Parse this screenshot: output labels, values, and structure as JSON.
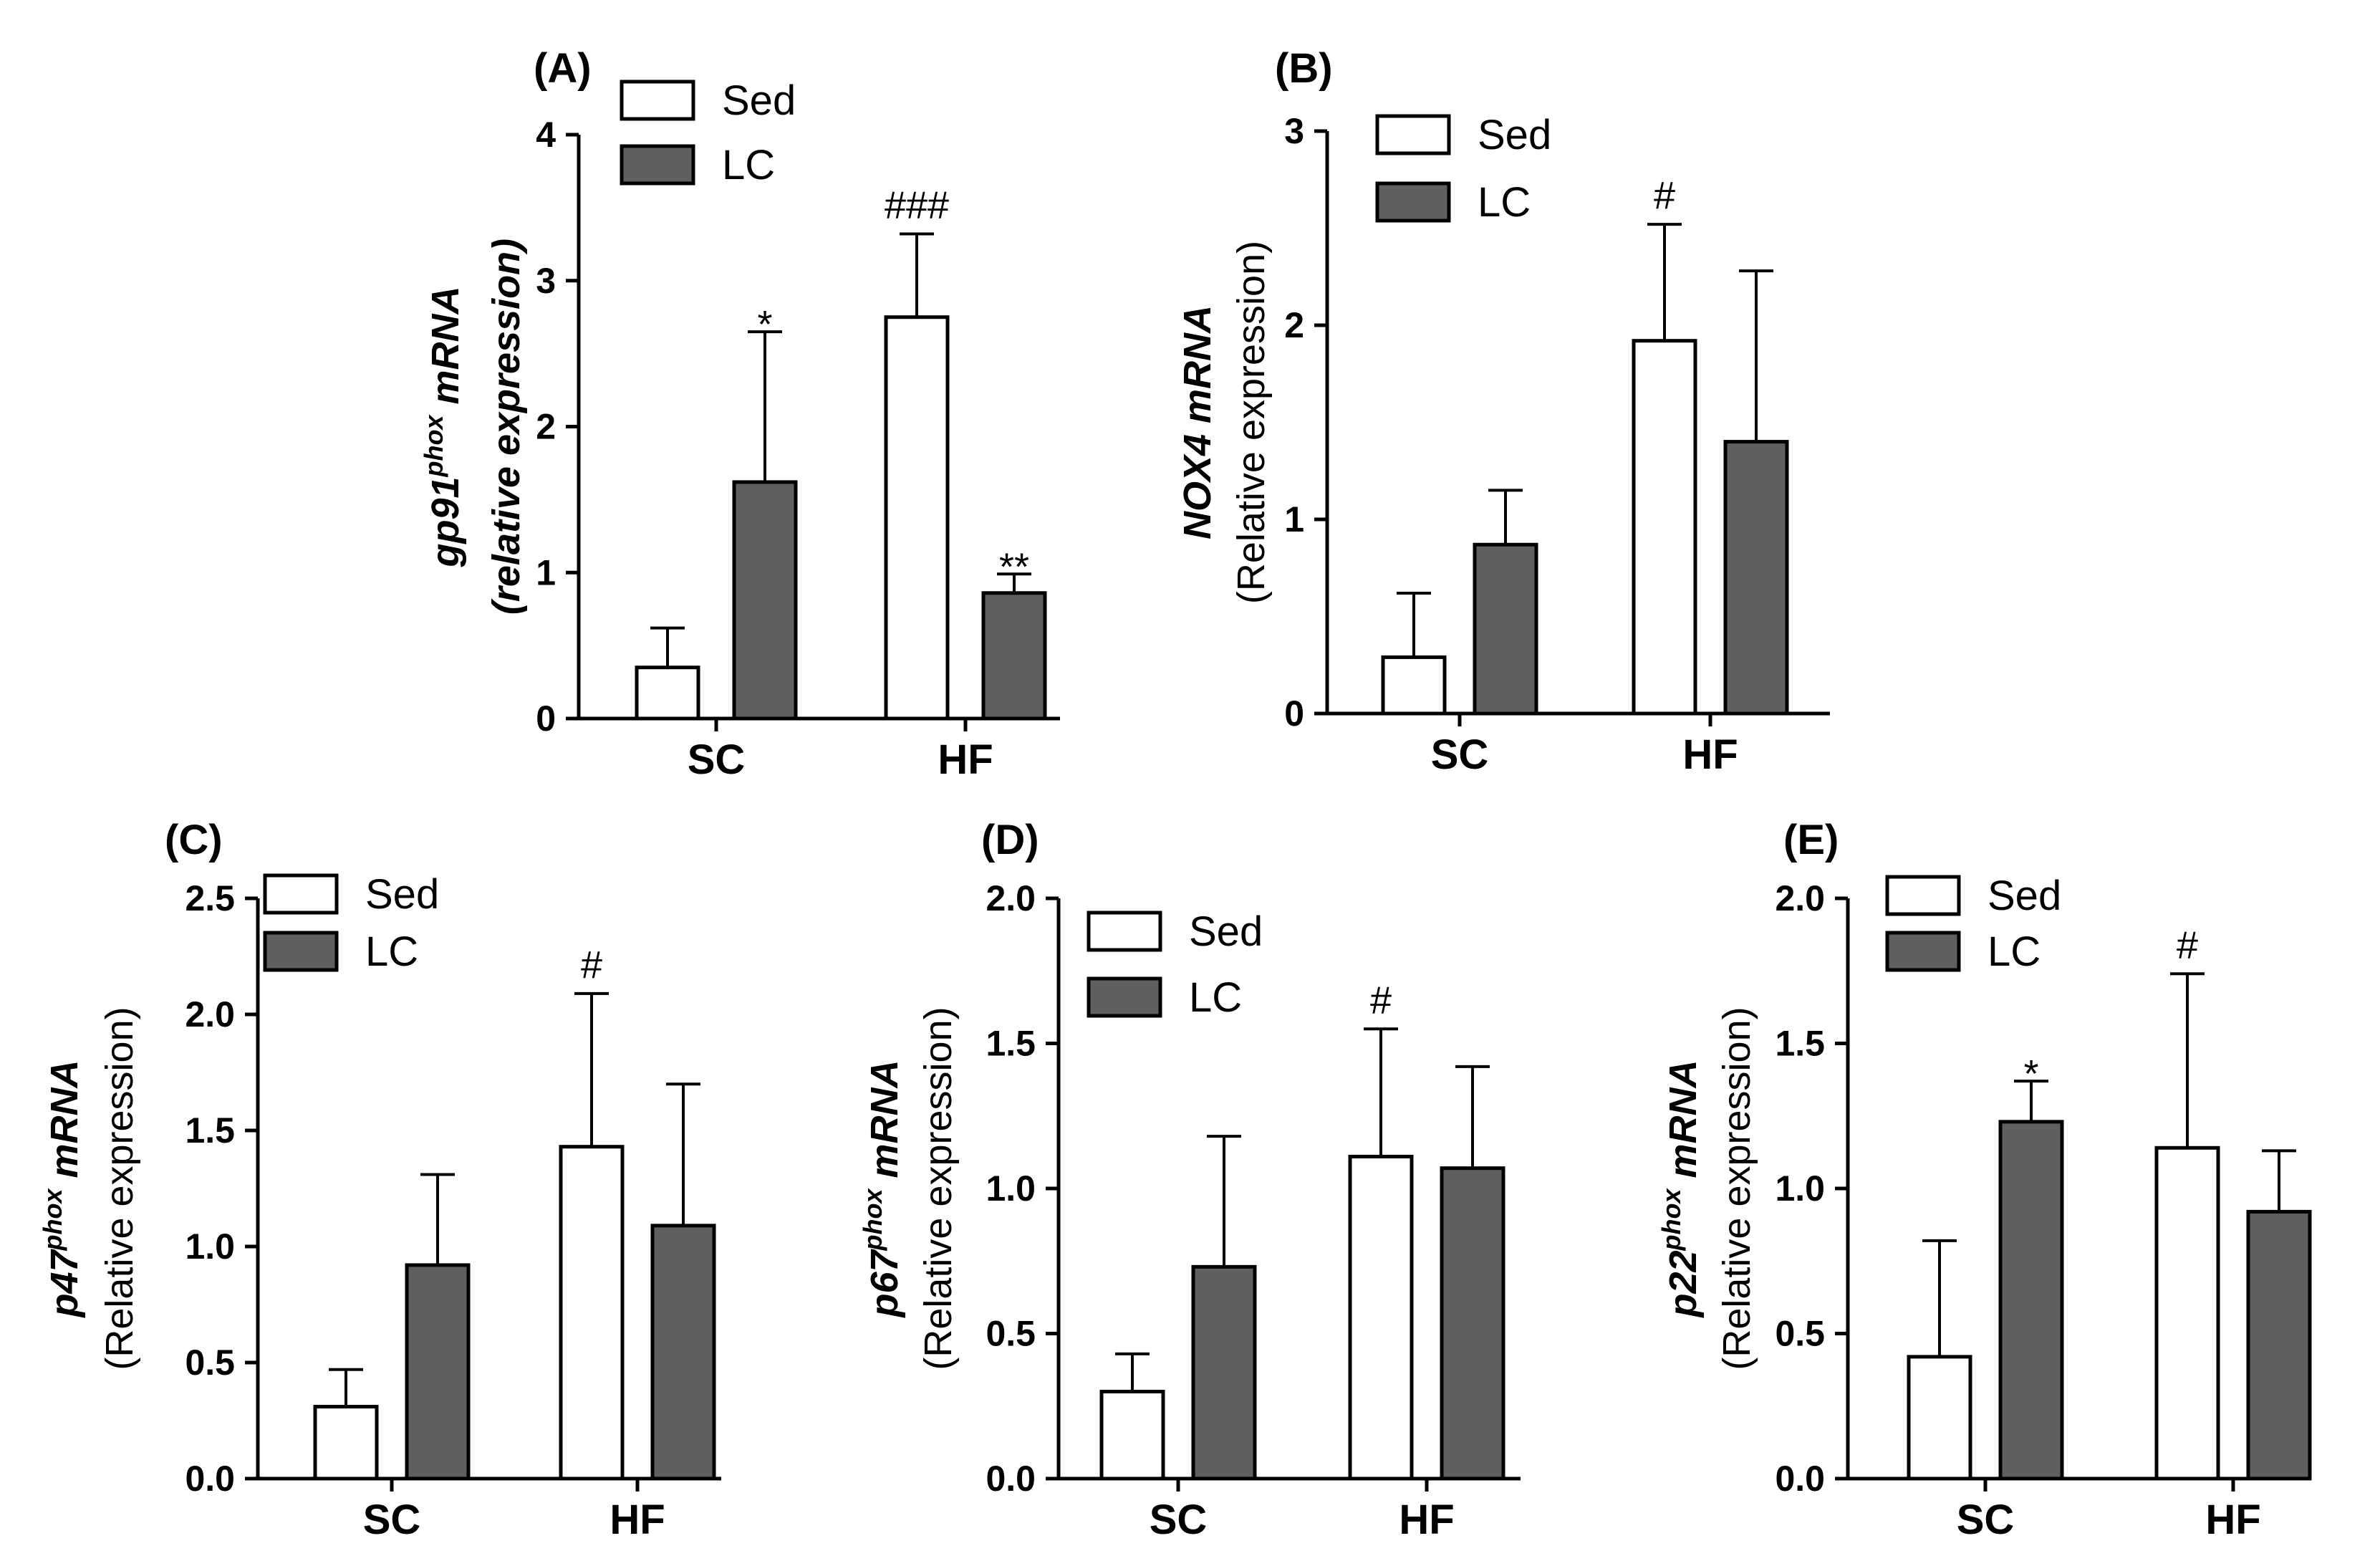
{
  "figure": {
    "legend_labels": [
      "Sed",
      "LC"
    ],
    "colors": {
      "Sed": "#ffffff",
      "LC": "#5f5f5f",
      "axis": "#000000"
    }
  },
  "chart_data": [
    {
      "panel": "(A)",
      "type": "bar",
      "categories": [
        "SC",
        "HF"
      ],
      "series": [
        {
          "name": "Sed",
          "values": [
            0.35,
            2.75
          ],
          "errors": [
            0.27,
            0.57
          ],
          "annotations": [
            "",
            "###"
          ]
        },
        {
          "name": "LC",
          "values": [
            1.62,
            0.86
          ],
          "errors": [
            1.03,
            0.13
          ],
          "annotations": [
            "*",
            "**"
          ]
        }
      ],
      "ylim": [
        0,
        4
      ],
      "yticks": [
        "0",
        "1",
        "2",
        "3",
        "4"
      ],
      "ylabel_line1": {
        "main": "gp91",
        "sup": "phox",
        "after": " mRNA"
      },
      "ylabel_line2": {
        "main": "(relative expression)",
        "italic": true
      }
    },
    {
      "panel": "(B)",
      "type": "bar",
      "categories": [
        "SC",
        "HF"
      ],
      "series": [
        {
          "name": "Sed",
          "values": [
            0.29,
            1.92
          ],
          "errors": [
            0.33,
            0.6
          ],
          "annotations": [
            "",
            "#"
          ]
        },
        {
          "name": "LC",
          "values": [
            0.87,
            1.4
          ],
          "errors": [
            0.28,
            0.88
          ],
          "annotations": [
            "",
            ""
          ]
        }
      ],
      "ylim": [
        0,
        3
      ],
      "yticks": [
        "0",
        "1",
        "2",
        "3"
      ],
      "ylabel_line1": {
        "main": "NOX4 mRNA",
        "sup": "",
        "after": ""
      },
      "ylabel_line2": {
        "main": "(Relative expression)",
        "italic": false
      }
    },
    {
      "panel": "(C)",
      "type": "bar",
      "categories": [
        "SC",
        "HF"
      ],
      "series": [
        {
          "name": "Sed",
          "values": [
            0.31,
            1.43
          ],
          "errors": [
            0.16,
            0.66
          ],
          "annotations": [
            "",
            "#"
          ]
        },
        {
          "name": "LC",
          "values": [
            0.92,
            1.09
          ],
          "errors": [
            0.39,
            0.61
          ],
          "annotations": [
            "",
            ""
          ]
        }
      ],
      "ylim": [
        0,
        2.5
      ],
      "yticks": [
        "0.0",
        "0.5",
        "1.0",
        "1.5",
        "2.0",
        "2.5"
      ],
      "ylabel_line1": {
        "main": "p47",
        "sup": "phox",
        "after": " mRNA"
      },
      "ylabel_line2": {
        "main": "(Relative expression)",
        "italic": false
      }
    },
    {
      "panel": "(D)",
      "type": "bar",
      "categories": [
        "SC",
        "HF"
      ],
      "series": [
        {
          "name": "Sed",
          "values": [
            0.3,
            1.11
          ],
          "errors": [
            0.13,
            0.44
          ],
          "annotations": [
            "",
            "#"
          ]
        },
        {
          "name": "LC",
          "values": [
            0.73,
            1.07
          ],
          "errors": [
            0.45,
            0.35
          ],
          "annotations": [
            "",
            ""
          ]
        }
      ],
      "ylim": [
        0,
        2.0
      ],
      "yticks": [
        "0.0",
        "0.5",
        "1.0",
        "1.5",
        "2.0"
      ],
      "ylabel_line1": {
        "main": "p67",
        "sup": "phox",
        "after": " mRNA"
      },
      "ylabel_line2": {
        "main": "(Relative expression)",
        "italic": false
      }
    },
    {
      "panel": "(E)",
      "type": "bar",
      "categories": [
        "SC",
        "HF"
      ],
      "series": [
        {
          "name": "Sed",
          "values": [
            0.42,
            1.14
          ],
          "errors": [
            0.4,
            0.6
          ],
          "annotations": [
            "",
            "#"
          ]
        },
        {
          "name": "LC",
          "values": [
            1.23,
            0.92
          ],
          "errors": [
            0.14,
            0.21
          ],
          "annotations": [
            "*",
            ""
          ]
        }
      ],
      "ylim": [
        0,
        2.0
      ],
      "yticks": [
        "0.0",
        "0.5",
        "1.0",
        "1.5",
        "2.0"
      ],
      "ylabel_line1": {
        "main": "p22",
        "sup": "phox",
        "after": " mRNA"
      },
      "ylabel_line2": {
        "main": "(Relative expression)",
        "italic": false
      }
    }
  ]
}
